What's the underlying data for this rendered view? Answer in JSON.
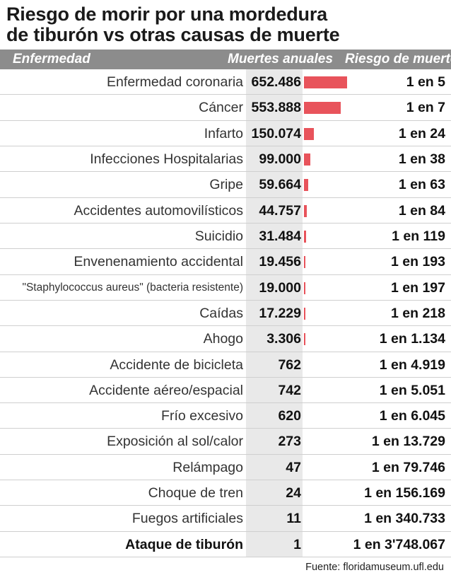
{
  "title": {
    "line1": "Riesgo de morir por  una mordedura",
    "line2": "de tiburón vs otras causas de muerte"
  },
  "colors": {
    "header_bg": "#8c8c8c",
    "bar": "#e8535b",
    "shade": "#e9e9e9"
  },
  "source": "Fuente: floridamuseum.ufl.edu",
  "chart_data": {
    "type": "bar",
    "orientation": "horizontal",
    "title": "Riesgo de morir por  una mordedura de tiburón vs otras causas de muerte",
    "columns": [
      "Enfermedad",
      "Muertes anuales",
      "Riesgo de muerte"
    ],
    "categories": [
      "Enfermedad coronaria",
      "Cáncer",
      "Infarto",
      "Infecciones Hospitalarias",
      "Gripe",
      "Accidentes automovilísticos",
      "Suicidio",
      "Envenenamiento accidental",
      "\"Staphylococcus aureus\" (bacteria resistente)",
      "Caídas",
      "Ahogo",
      "Accidente de bicicleta",
      "Accidente aéreo/espacial",
      "Frío excesivo",
      "Exposición al sol/calor",
      "Relámpago",
      "Choque de tren",
      "Fuegos artificiales",
      "Ataque de tiburón"
    ],
    "values": [
      652486,
      553888,
      150074,
      99000,
      59664,
      44757,
      31484,
      19456,
      19000,
      17229,
      3306,
      762,
      742,
      620,
      273,
      47,
      24,
      11,
      1
    ],
    "value_labels": [
      "652.486",
      "553.888",
      "150.074",
      "99.000",
      "59.664",
      "44.757",
      "31.484",
      "19.456",
      "19.000",
      "17.229",
      "3.306",
      "762",
      "742",
      "620",
      "273",
      "47",
      "24",
      "11",
      "1"
    ],
    "risk_labels": [
      "1 en 5",
      "1 en 7",
      "1 en 24",
      "1 en 38",
      "1 en 63",
      "1 en 84",
      "1 en 119",
      "1 en 193",
      "1 en 197",
      "1 en 218",
      "1 en 1.134",
      "1 en 4.919",
      "1 en 5.051",
      "1 en 6.045",
      "1 en 13.729",
      "1 en 79.746",
      "1 en 156.169",
      "1 en 340.733",
      "1 en 3'748.067"
    ],
    "highlight_category": "Ataque de tiburón",
    "xlim": [
      0,
      652486
    ]
  }
}
